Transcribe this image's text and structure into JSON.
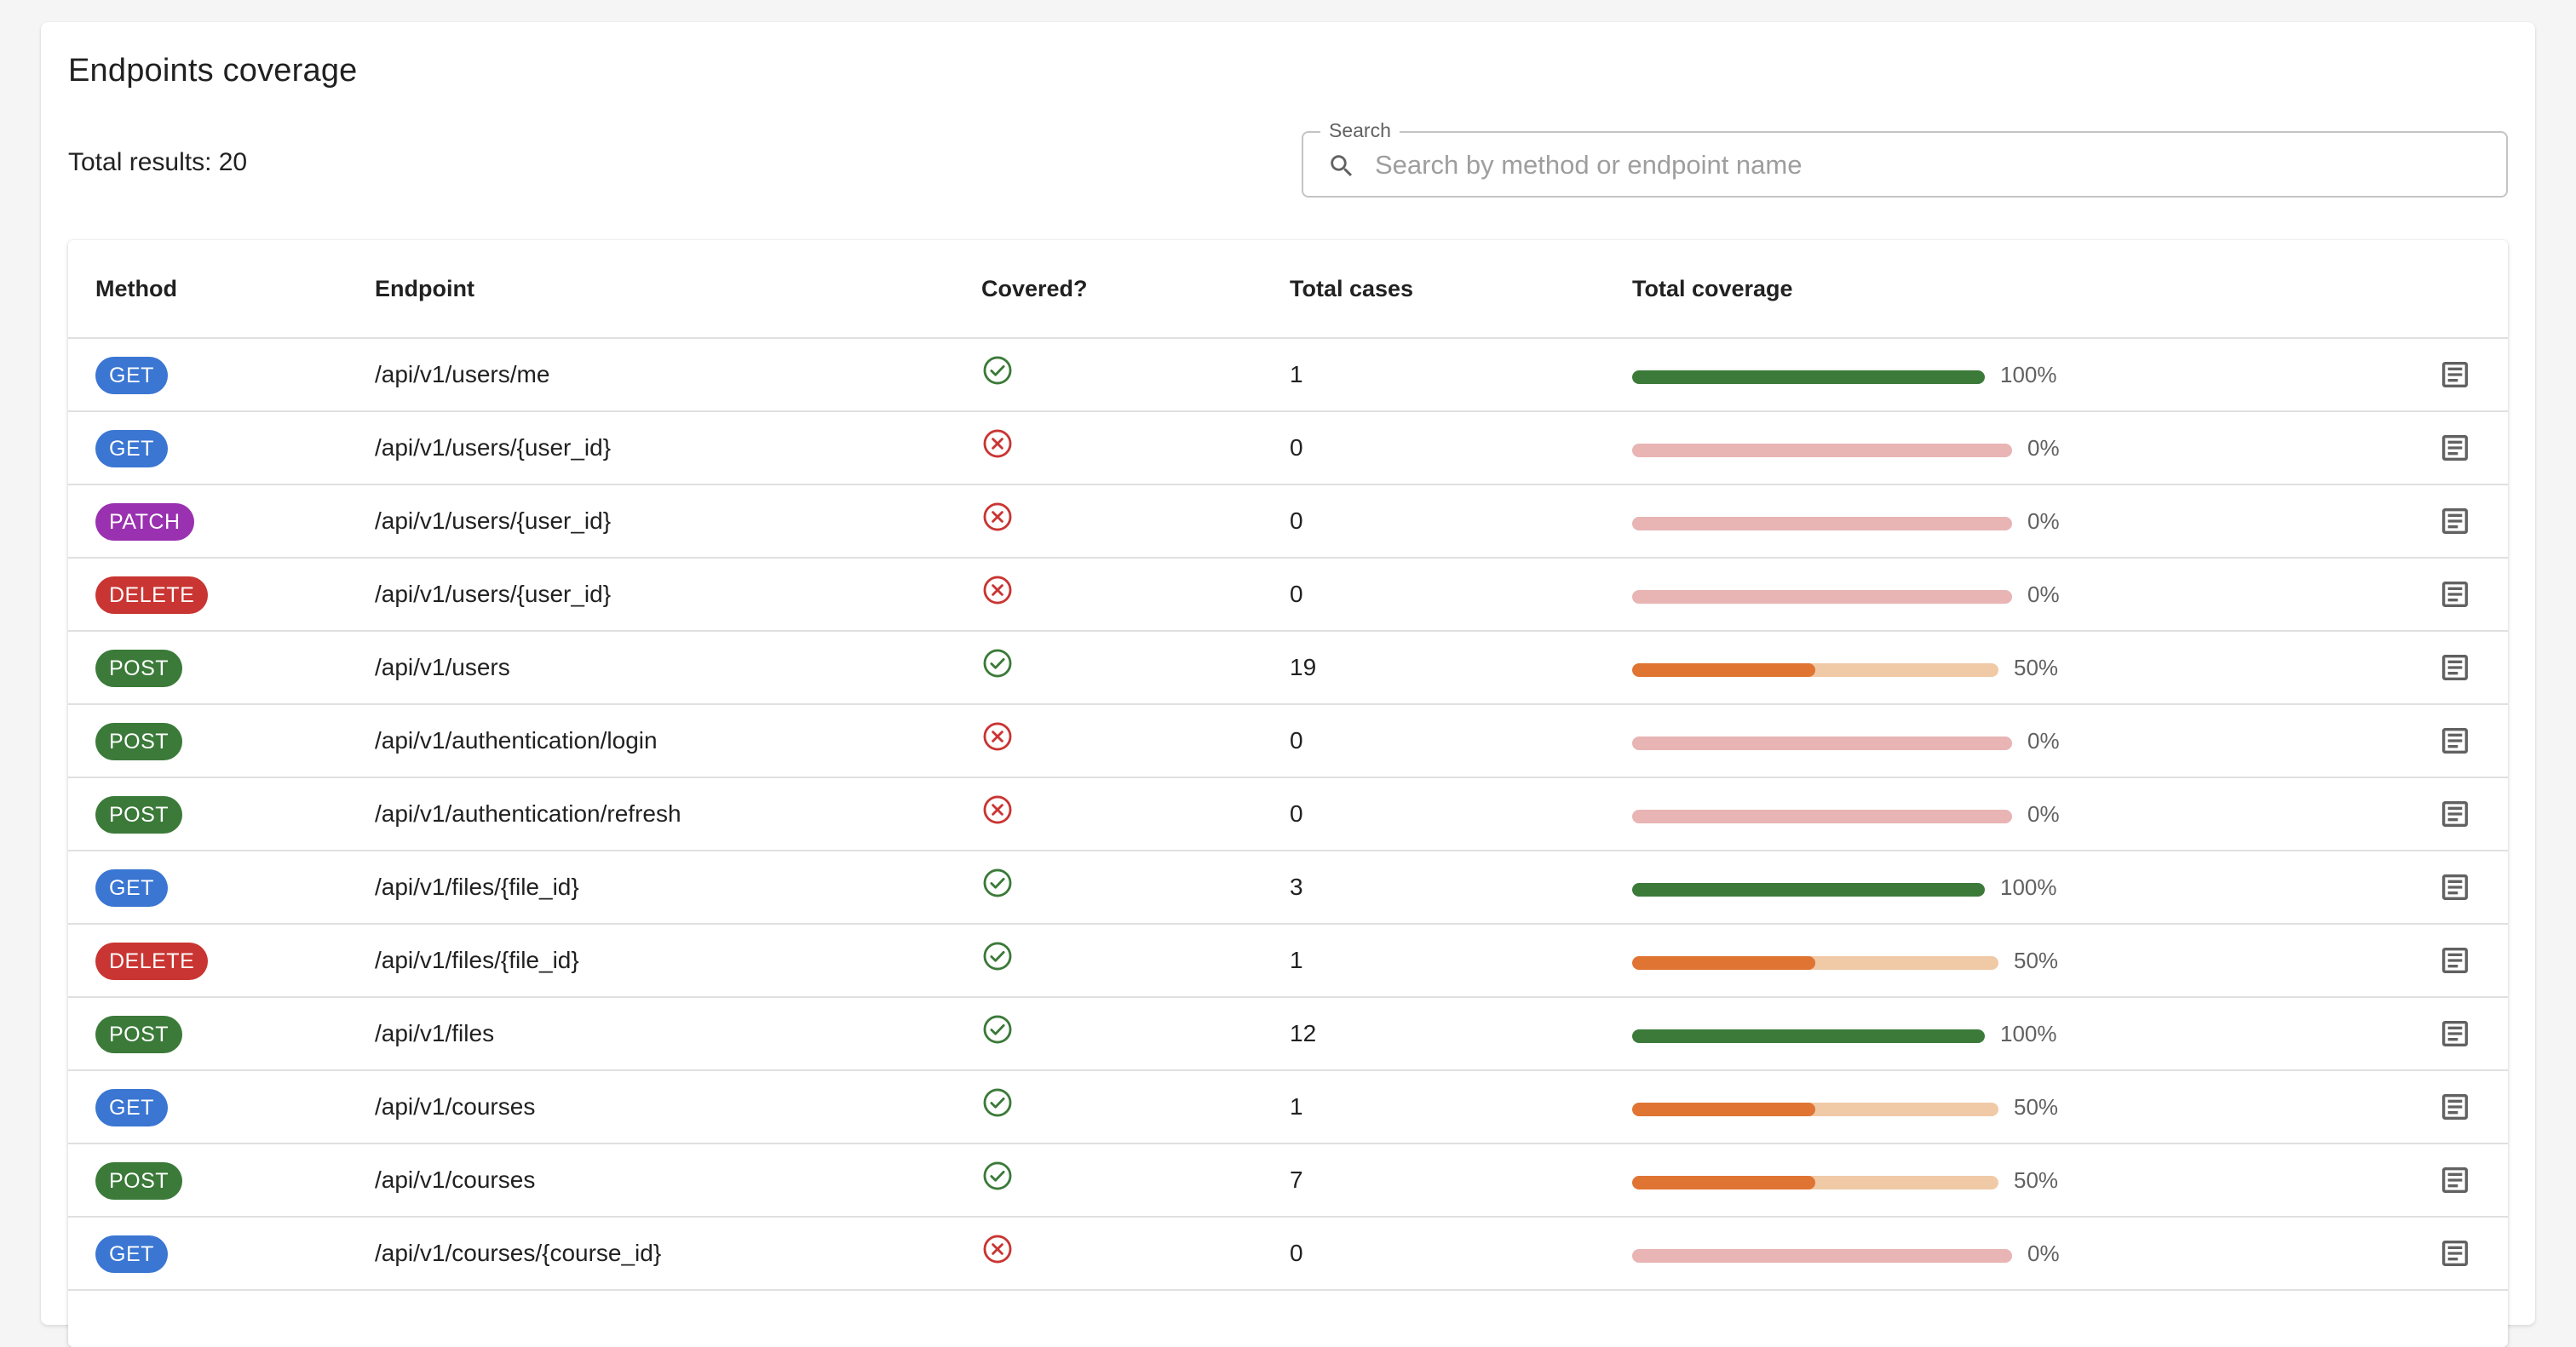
{
  "title": "Endpoints coverage",
  "total_results": "Total results: 20",
  "search": {
    "label": "Search",
    "placeholder": "Search by method or endpoint name",
    "value": ""
  },
  "table": {
    "headers": {
      "method": "Method",
      "endpoint": "Endpoint",
      "covered": "Covered?",
      "total_cases": "Total cases",
      "total_coverage": "Total coverage"
    },
    "rows": [
      {
        "method": "GET",
        "endpoint": "/api/v1/users/me",
        "covered": true,
        "total_cases": "1",
        "coverage": 100,
        "coverage_label": "100%"
      },
      {
        "method": "GET",
        "endpoint": "/api/v1/users/{user_id}",
        "covered": false,
        "total_cases": "0",
        "coverage": 0,
        "coverage_label": "0%"
      },
      {
        "method": "PATCH",
        "endpoint": "/api/v1/users/{user_id}",
        "covered": false,
        "total_cases": "0",
        "coverage": 0,
        "coverage_label": "0%"
      },
      {
        "method": "DELETE",
        "endpoint": "/api/v1/users/{user_id}",
        "covered": false,
        "total_cases": "0",
        "coverage": 0,
        "coverage_label": "0%"
      },
      {
        "method": "POST",
        "endpoint": "/api/v1/users",
        "covered": true,
        "total_cases": "19",
        "coverage": 50,
        "coverage_label": "50%"
      },
      {
        "method": "POST",
        "endpoint": "/api/v1/authentication/login",
        "covered": false,
        "total_cases": "0",
        "coverage": 0,
        "coverage_label": "0%"
      },
      {
        "method": "POST",
        "endpoint": "/api/v1/authentication/refresh",
        "covered": false,
        "total_cases": "0",
        "coverage": 0,
        "coverage_label": "0%"
      },
      {
        "method": "GET",
        "endpoint": "/api/v1/files/{file_id}",
        "covered": true,
        "total_cases": "3",
        "coverage": 100,
        "coverage_label": "100%"
      },
      {
        "method": "DELETE",
        "endpoint": "/api/v1/files/{file_id}",
        "covered": true,
        "total_cases": "1",
        "coverage": 50,
        "coverage_label": "50%"
      },
      {
        "method": "POST",
        "endpoint": "/api/v1/files",
        "covered": true,
        "total_cases": "12",
        "coverage": 100,
        "coverage_label": "100%"
      },
      {
        "method": "GET",
        "endpoint": "/api/v1/courses",
        "covered": true,
        "total_cases": "1",
        "coverage": 50,
        "coverage_label": "50%"
      },
      {
        "method": "POST",
        "endpoint": "/api/v1/courses",
        "covered": true,
        "total_cases": "7",
        "coverage": 50,
        "coverage_label": "50%"
      },
      {
        "method": "GET",
        "endpoint": "/api/v1/courses/{course_id}",
        "covered": false,
        "total_cases": "0",
        "coverage": 0,
        "coverage_label": "0%"
      }
    ]
  },
  "colors": {
    "method_get": "#3a76d2",
    "method_post": "#3b7a39",
    "method_patch": "#9a31b0",
    "method_delete": "#c93532",
    "covered_ok": "#3b7a39",
    "covered_no": "#c93532",
    "bar_full_fill": "#3b7a39",
    "bar_full_track": "#a9cda8",
    "bar_half_fill": "#df7433",
    "bar_half_track": "#f0c9a6",
    "bar_zero_track": "#e8b4b4",
    "details_icon": "#616161"
  },
  "icons": {
    "search": "search-icon",
    "covered_ok": "check-circle-icon",
    "covered_no": "cancel-circle-icon",
    "details": "document-list-icon"
  }
}
